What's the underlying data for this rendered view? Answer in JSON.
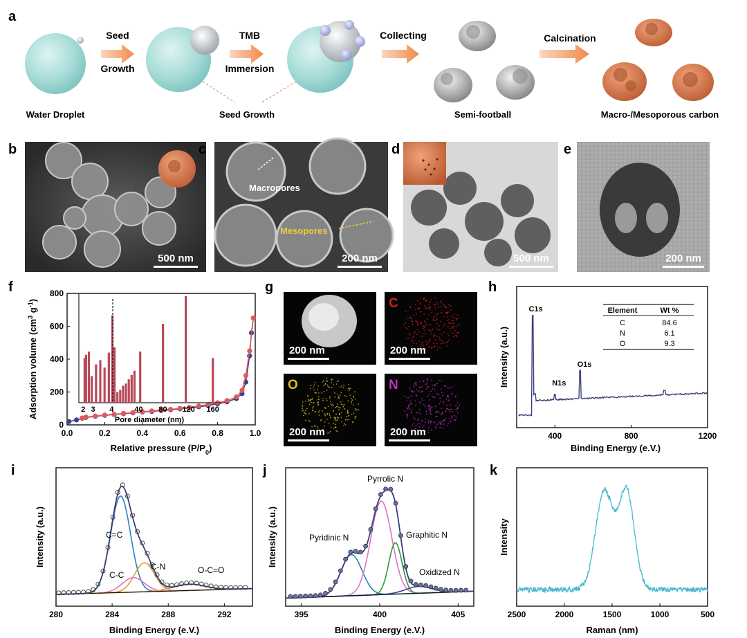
{
  "panel_a": {
    "label": "a",
    "steps": [
      {
        "top": "Seed",
        "bottom": "Growth"
      },
      {
        "top": "TMB",
        "bottom": "Immersion"
      },
      {
        "top": "Collecting",
        "bottom": ""
      },
      {
        "top": "Calcination",
        "bottom": ""
      }
    ],
    "captions": {
      "water": "Water Droplet",
      "seed": "Seed Growth",
      "semi": "Semi-football",
      "carbon": "Macro-/Mesoporous carbon"
    }
  },
  "images": {
    "b": {
      "label": "b",
      "scale": "500 nm"
    },
    "c": {
      "label": "c",
      "scale": "200 nm",
      "macro": "Macropores",
      "meso": "Mesopores"
    },
    "d": {
      "label": "d",
      "scale": "500 nm"
    },
    "e": {
      "label": "e",
      "scale": "200 nm"
    }
  },
  "panel_g": {
    "label": "g",
    "tiles": [
      {
        "tag": "",
        "scale": "200 nm",
        "color": "#e0e0e0"
      },
      {
        "tag": "C",
        "scale": "200 nm",
        "color": "#d42020"
      },
      {
        "tag": "O",
        "scale": "200 nm",
        "color": "#e0c020"
      },
      {
        "tag": "N",
        "scale": "200 nm",
        "color": "#c030c0"
      }
    ]
  },
  "chart_data": [
    {
      "panel": "f",
      "type": "line",
      "xlabel": "Relative pressure (P/P0)",
      "ylabel": "Adsorption volume (cm3 g-1)",
      "xlim": [
        0.0,
        1.0
      ],
      "ylim": [
        0,
        800
      ],
      "xticks": [
        0.0,
        0.2,
        0.4,
        0.6,
        0.8,
        1.0
      ],
      "yticks": [
        0,
        200,
        400,
        600,
        800
      ],
      "series": [
        {
          "x": [
            0.01,
            0.05,
            0.08,
            0.1,
            0.15,
            0.2,
            0.25,
            0.3,
            0.35,
            0.4,
            0.45,
            0.5,
            0.55,
            0.6,
            0.65,
            0.7,
            0.75,
            0.8,
            0.85,
            0.9,
            0.93,
            0.95,
            0.97,
            0.98,
            0.99
          ],
          "values": [
            20,
            30,
            40,
            45,
            52,
            58,
            63,
            68,
            73,
            78,
            82,
            87,
            92,
            97,
            103,
            110,
            118,
            128,
            140,
            160,
            190,
            260,
            420,
            560,
            650
          ],
          "color": "#3a3f8f"
        },
        {
          "x": [
            0.99,
            0.97,
            0.95,
            0.93,
            0.9,
            0.85,
            0.8,
            0.75,
            0.7,
            0.65,
            0.6,
            0.55,
            0.5,
            0.45,
            0.4,
            0.35,
            0.3,
            0.25,
            0.2,
            0.15,
            0.1,
            0.08
          ],
          "values": [
            650,
            450,
            300,
            210,
            170,
            148,
            135,
            124,
            115,
            107,
            100,
            95,
            90,
            85,
            80,
            75,
            70,
            65,
            60,
            54,
            47,
            42
          ],
          "color": "#e05a5a"
        }
      ],
      "inset": {
        "type": "bar",
        "xlabel": "Pore diameter (nm)",
        "tick_labels": [
          "2",
          "3",
          "4",
          "40",
          "80",
          "120",
          "160"
        ],
        "dashed_at": "4",
        "bars": [
          {
            "pos": 0.04,
            "v": 0.42
          },
          {
            "pos": 0.05,
            "v": 0.45
          },
          {
            "pos": 0.07,
            "v": 0.48
          },
          {
            "pos": 0.09,
            "v": 0.25
          },
          {
            "pos": 0.12,
            "v": 0.36
          },
          {
            "pos": 0.15,
            "v": 0.4
          },
          {
            "pos": 0.18,
            "v": 0.33
          },
          {
            "pos": 0.21,
            "v": 0.47
          },
          {
            "pos": 0.235,
            "v": 0.82
          },
          {
            "pos": 0.25,
            "v": 0.52
          },
          {
            "pos": 0.27,
            "v": 0.1
          },
          {
            "pos": 0.29,
            "v": 0.12
          },
          {
            "pos": 0.31,
            "v": 0.16
          },
          {
            "pos": 0.33,
            "v": 0.18
          },
          {
            "pos": 0.35,
            "v": 0.22
          },
          {
            "pos": 0.37,
            "v": 0.26
          },
          {
            "pos": 0.39,
            "v": 0.3
          },
          {
            "pos": 0.43,
            "v": 0.48
          },
          {
            "pos": 0.59,
            "v": 0.74
          },
          {
            "pos": 0.75,
            "v": 1.0
          },
          {
            "pos": 0.94,
            "v": 0.42
          }
        ]
      }
    },
    {
      "panel": "h",
      "type": "line",
      "xlabel": "Binding Energy (e.V.)",
      "ylabel": "Intensity (a.u.)",
      "xlim": [
        200,
        1200
      ],
      "xticks": [
        400,
        800,
        1200
      ],
      "peaks": [
        {
          "label": "C1s",
          "x": 285
        },
        {
          "label": "N1s",
          "x": 400
        },
        {
          "label": "O1s",
          "x": 532
        }
      ],
      "table": {
        "headers": [
          "Element",
          "Wt %"
        ],
        "rows": [
          [
            "C",
            "84.6"
          ],
          [
            "N",
            "6.1"
          ],
          [
            "O",
            "9.3"
          ]
        ]
      }
    },
    {
      "panel": "i",
      "type": "line",
      "xlabel": "Binding Energy (e.V.)",
      "ylabel": "Intensity (a.u.)",
      "xlim": [
        280,
        294
      ],
      "xticks": [
        280,
        284,
        288,
        292
      ],
      "components": [
        {
          "label": "C=C",
          "center": 284.6,
          "color": "#2a7fc0"
        },
        {
          "label": "C-C",
          "center": 285.5,
          "color": "#e070c0"
        },
        {
          "label": "C-N",
          "center": 286.3,
          "color": "#e89a30"
        },
        {
          "label": "O-C=O",
          "center": 289.5,
          "color": "#e89a30"
        }
      ]
    },
    {
      "panel": "j",
      "type": "line",
      "xlabel": "Binding Energy (e.V.)",
      "ylabel": "Intensity (a.u.)",
      "xlim": [
        394,
        406
      ],
      "xticks": [
        395,
        400,
        405
      ],
      "components": [
        {
          "label": "Pyridinic N",
          "center": 398.2,
          "color": "#2a7fc0"
        },
        {
          "label": "Pyrrolic N",
          "center": 400.1,
          "color": "#e070c0"
        },
        {
          "label": "Graphitic N",
          "center": 401.0,
          "color": "#2a9a30"
        },
        {
          "label": "Oxidized N",
          "center": 402.5,
          "color": "#3a3fa0"
        }
      ]
    },
    {
      "panel": "k",
      "type": "line",
      "xlabel": "Raman (nm)",
      "ylabel": "Intensity",
      "xlim": [
        2500,
        500
      ],
      "xticks": [
        2500,
        2000,
        1500,
        1000,
        500
      ],
      "peaks": [
        1590,
        1350
      ]
    }
  ]
}
